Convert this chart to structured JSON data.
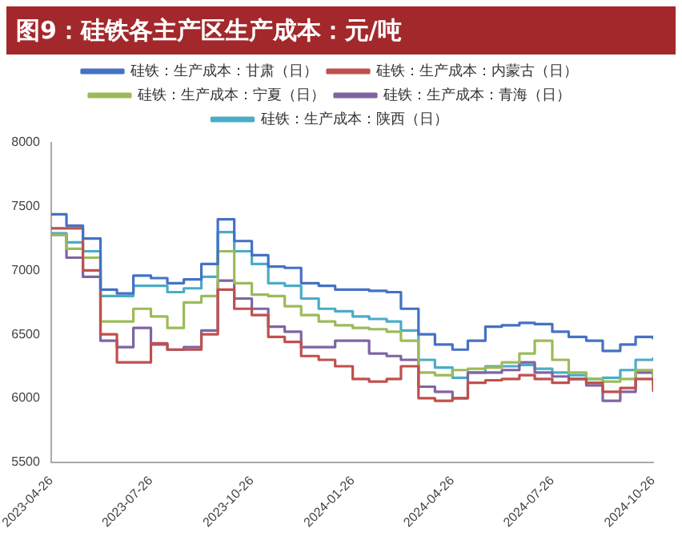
{
  "chart_data": {
    "type": "step",
    "title": "图9：硅铁各主产区生产成本：元/吨",
    "x": [
      "2023-04-26",
      "2023-05-10",
      "2023-05-25",
      "2023-06-10",
      "2023-06-25",
      "2023-07-10",
      "2023-07-26",
      "2023-08-10",
      "2023-08-25",
      "2023-09-10",
      "2023-09-25",
      "2023-10-10",
      "2023-10-26",
      "2023-11-10",
      "2023-11-25",
      "2023-12-10",
      "2023-12-26",
      "2024-01-10",
      "2024-01-26",
      "2024-02-10",
      "2024-02-26",
      "2024-03-10",
      "2024-03-26",
      "2024-04-10",
      "2024-04-26",
      "2024-05-10",
      "2024-05-26",
      "2024-06-10",
      "2024-06-26",
      "2024-07-10",
      "2024-07-26",
      "2024-08-10",
      "2024-08-26",
      "2024-09-10",
      "2024-09-26",
      "2024-10-10",
      "2024-10-26"
    ],
    "series": [
      {
        "name": "硅铁：生产成本：甘肃（日）",
        "color": "#4472c4",
        "values": [
          7440,
          7350,
          7250,
          6850,
          6820,
          6960,
          6940,
          6900,
          6930,
          7050,
          7400,
          7230,
          7120,
          7030,
          7020,
          6900,
          6880,
          6850,
          6850,
          6840,
          6830,
          6700,
          6500,
          6420,
          6380,
          6450,
          6560,
          6570,
          6590,
          6580,
          6520,
          6480,
          6450,
          6370,
          6420,
          6480,
          6460
        ]
      },
      {
        "name": "硅铁：生产成本：内蒙古（日）",
        "color": "#c0504d",
        "values": [
          7330,
          7330,
          7000,
          6500,
          6280,
          6280,
          6430,
          6380,
          6380,
          6500,
          6850,
          6700,
          6650,
          6480,
          6440,
          6330,
          6300,
          6250,
          6150,
          6130,
          6150,
          6250,
          6000,
          5980,
          6000,
          6120,
          6140,
          6150,
          6180,
          6150,
          6120,
          6150,
          6120,
          6050,
          6080,
          6150,
          6050
        ]
      },
      {
        "name": "硅铁：生产成本：宁夏（日）",
        "color": "#9bbb59",
        "values": [
          7280,
          7170,
          7100,
          6600,
          6600,
          6700,
          6640,
          6550,
          6750,
          6800,
          7150,
          6900,
          6810,
          6800,
          6720,
          6650,
          6600,
          6570,
          6550,
          6540,
          6520,
          6450,
          6200,
          6180,
          6220,
          6230,
          6240,
          6280,
          6350,
          6450,
          6300,
          6200,
          6150,
          6130,
          6150,
          6220,
          6100
        ]
      },
      {
        "name": "硅铁：生产成本：青海（日）",
        "color": "#8064a2",
        "values": [
          7280,
          7100,
          6950,
          6450,
          6400,
          6550,
          6420,
          6380,
          6400,
          6530,
          6920,
          6780,
          6700,
          6560,
          6520,
          6400,
          6400,
          6450,
          6450,
          6350,
          6330,
          6300,
          6090,
          6050,
          6000,
          6200,
          6200,
          6220,
          6280,
          6200,
          6170,
          6150,
          6100,
          5980,
          6050,
          6200,
          6150
        ]
      },
      {
        "name": "硅铁：生产成本：陕西（日）",
        "color": "#4bacc6",
        "values": [
          7290,
          7220,
          7150,
          6800,
          6800,
          6880,
          6880,
          6830,
          6860,
          6950,
          7300,
          7150,
          7050,
          6900,
          6880,
          6780,
          6700,
          6680,
          6640,
          6620,
          6600,
          6530,
          6300,
          6240,
          6160,
          6200,
          6250,
          6250,
          6260,
          6230,
          6200,
          6180,
          6150,
          6160,
          6220,
          6300,
          6320
        ]
      }
    ],
    "xlim": [
      "2023-04-26",
      "2024-10-26"
    ],
    "xticks": [
      "2023-04-26",
      "2023-07-26",
      "2023-10-26",
      "2024-01-26",
      "2024-04-26",
      "2024-07-26",
      "2024-10-26"
    ],
    "ylim": [
      5500,
      8000
    ],
    "yticks": [
      5500,
      6000,
      6500,
      7000,
      7500,
      8000
    ],
    "grid": false,
    "legend": "top",
    "line_style": "solid",
    "marker": "none"
  }
}
